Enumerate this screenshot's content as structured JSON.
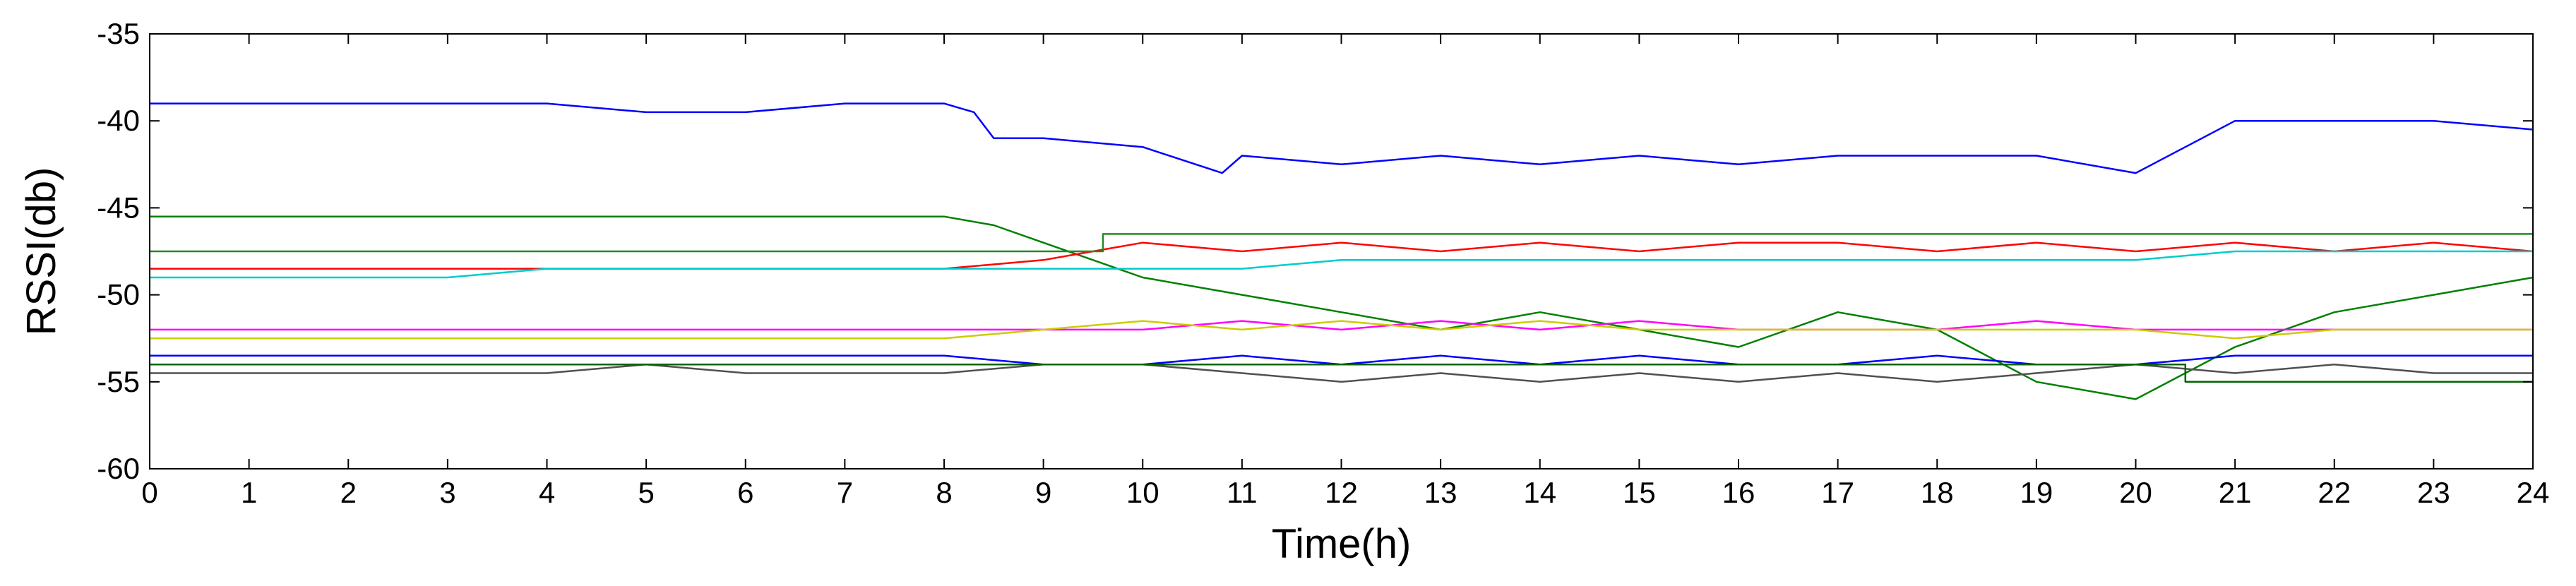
{
  "chart_data": {
    "type": "line",
    "title": "",
    "xlabel": "Time(h)",
    "ylabel": "RSSI(db)",
    "xlim": [
      0,
      24
    ],
    "ylim": [
      -60,
      -35
    ],
    "xticks": [
      0,
      1,
      2,
      3,
      4,
      5,
      6,
      7,
      8,
      9,
      10,
      11,
      12,
      13,
      14,
      15,
      16,
      17,
      18,
      19,
      20,
      21,
      22,
      23,
      24
    ],
    "xtick_labels": [
      "0",
      "1",
      "2",
      "3",
      "4",
      "5",
      "6",
      "7",
      "8",
      "9",
      "10",
      "11",
      "12",
      "13",
      "14",
      "15",
      "16",
      "17",
      "18",
      "19",
      "20",
      "21",
      "22",
      "23",
      "24"
    ],
    "yticks": [
      -60,
      -55,
      -50,
      -45,
      -40,
      -35
    ],
    "ytick_labels": [
      "-60",
      "-55",
      "-50",
      "-45",
      "-40",
      "-35"
    ],
    "grid": false,
    "legend": false,
    "series": [
      {
        "color": "#0000ff",
        "x": [
          0,
          1,
          2,
          3,
          4,
          5,
          6,
          7,
          8,
          8.3,
          8.5,
          9,
          10,
          10.8,
          11,
          12,
          13,
          14,
          15,
          16,
          17,
          18,
          19,
          20,
          20.5,
          21,
          22,
          23,
          24
        ],
        "y": [
          -39,
          -39,
          -39,
          -39,
          -39,
          -39.5,
          -39.5,
          -39,
          -39,
          -39.5,
          -41,
          -41,
          -41.5,
          -43,
          -42,
          -42.5,
          -42,
          -42.5,
          -42,
          -42.5,
          -42,
          -42,
          -42,
          -43,
          -41.5,
          -40,
          -40,
          -40,
          -40.5
        ]
      },
      {
        "color": "#008000",
        "x": [
          0,
          1,
          2,
          3,
          4,
          5,
          6,
          7,
          8,
          8.5,
          9,
          10,
          11,
          12,
          13,
          14,
          15,
          16,
          17,
          18,
          19,
          20,
          21,
          22,
          23,
          24
        ],
        "y": [
          -45.5,
          -45.5,
          -45.5,
          -45.5,
          -45.5,
          -45.5,
          -45.5,
          -45.5,
          -45.5,
          -46,
          -47,
          -49,
          -50,
          -51,
          -52,
          -51,
          -52,
          -53,
          -51,
          -52,
          -55,
          -56,
          -53,
          -51,
          -50,
          -49
        ]
      },
      {
        "color": "#ff0000",
        "x": [
          0,
          1,
          2,
          3,
          4,
          5,
          6,
          7,
          8,
          9,
          10,
          11,
          12,
          13,
          14,
          15,
          16,
          17,
          18,
          19,
          20,
          21,
          22,
          23,
          24
        ],
        "y": [
          -48.5,
          -48.5,
          -48.5,
          -48.5,
          -48.5,
          -48.5,
          -48.5,
          -48.5,
          -48.5,
          -48,
          -47,
          -47.5,
          -47,
          -47.5,
          -47,
          -47.5,
          -47,
          -47,
          -47.5,
          -47,
          -47.5,
          -47,
          -47.5,
          -47,
          -47.5
        ]
      },
      {
        "color": "#00cccc",
        "x": [
          0,
          1,
          2,
          3,
          4,
          5,
          6,
          7,
          8,
          9,
          10,
          11,
          12,
          13,
          14,
          15,
          16,
          17,
          18,
          19,
          20,
          21,
          22,
          23,
          24
        ],
        "y": [
          -49,
          -49,
          -49,
          -49,
          -48.5,
          -48.5,
          -48.5,
          -48.5,
          -48.5,
          -48.5,
          -48.5,
          -48.5,
          -48,
          -48,
          -48,
          -48,
          -48,
          -48,
          -48,
          -48,
          -48,
          -47.5,
          -47.5,
          -47.5,
          -47.5
        ]
      },
      {
        "color": "#ff00ff",
        "x": [
          0,
          1,
          2,
          3,
          4,
          5,
          6,
          7,
          8,
          9,
          10,
          11,
          12,
          13,
          14,
          15,
          16,
          17,
          18,
          19,
          20,
          21,
          22,
          23,
          24
        ],
        "y": [
          -52,
          -52,
          -52,
          -52,
          -52,
          -52,
          -52,
          -52,
          -52,
          -52,
          -52,
          -51.5,
          -52,
          -51.5,
          -52,
          -51.5,
          -52,
          -52,
          -52,
          -51.5,
          -52,
          -52,
          -52,
          -52,
          -52
        ]
      },
      {
        "color": "#cccc00",
        "x": [
          0,
          1,
          2,
          3,
          4,
          5,
          6,
          7,
          8,
          9,
          10,
          11,
          12,
          13,
          14,
          15,
          16,
          17,
          18,
          19,
          20,
          21,
          22,
          23,
          24
        ],
        "y": [
          -52.5,
          -52.5,
          -52.5,
          -52.5,
          -52.5,
          -52.5,
          -52.5,
          -52.5,
          -52.5,
          -52,
          -51.5,
          -52,
          -51.5,
          -52,
          -51.5,
          -52,
          -52,
          -52,
          -52,
          -52,
          -52,
          -52.5,
          -52,
          -52,
          -52
        ]
      },
      {
        "color": "#0000ff",
        "x": [
          0,
          1,
          2,
          3,
          4,
          5,
          6,
          7,
          8,
          9,
          10,
          11,
          12,
          13,
          14,
          15,
          16,
          17,
          18,
          19,
          20,
          21,
          22,
          23,
          24
        ],
        "y": [
          -53.5,
          -53.5,
          -53.5,
          -53.5,
          -53.5,
          -53.5,
          -53.5,
          -53.5,
          -53.5,
          -54,
          -54,
          -53.5,
          -54,
          -53.5,
          -54,
          -53.5,
          -54,
          -54,
          -53.5,
          -54,
          -54,
          -53.5,
          -53.5,
          -53.5,
          -53.5
        ]
      },
      {
        "color": "#505050",
        "x": [
          0,
          1,
          2,
          3,
          4,
          5,
          6,
          7,
          8,
          9,
          10,
          11,
          12,
          13,
          14,
          15,
          16,
          17,
          18,
          19,
          20,
          21,
          22,
          23,
          24
        ],
        "y": [
          -54.5,
          -54.5,
          -54.5,
          -54.5,
          -54.5,
          -54,
          -54.5,
          -54.5,
          -54.5,
          -54,
          -54,
          -54.5,
          -55,
          -54.5,
          -55,
          -54.5,
          -55,
          -54.5,
          -55,
          -54.5,
          -54,
          -54.5,
          -54,
          -54.5,
          -54.5
        ]
      },
      {
        "color": "#006400",
        "x": [
          0,
          8.3,
          8.3,
          10,
          20.5,
          20.5,
          24
        ],
        "y": [
          -54,
          -54,
          -54,
          -54,
          -54,
          -55,
          -55
        ]
      },
      {
        "color": "#228B22",
        "x": [
          0,
          9.6,
          9.6,
          24
        ],
        "y": [
          -47.5,
          -47.5,
          -46.5,
          -46.5
        ]
      }
    ]
  }
}
